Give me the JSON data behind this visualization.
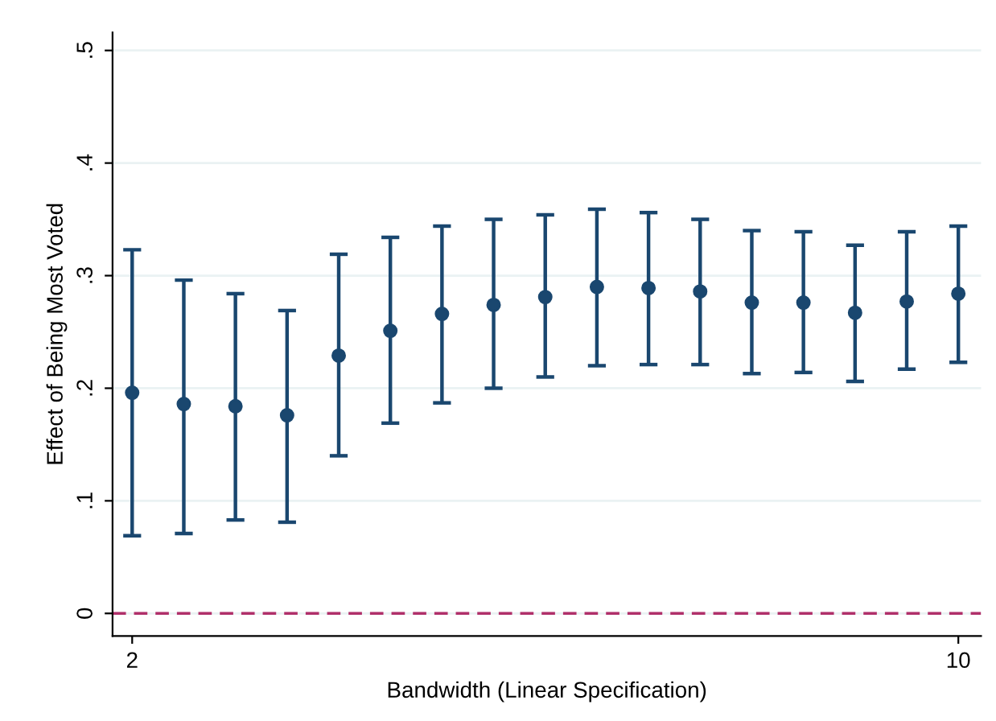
{
  "chart_data": {
    "type": "scatter",
    "xlabel": "Bandwidth (Linear Specification)",
    "ylabel": "Effect of Being Most Voted",
    "x": [
      2,
      2.5,
      3,
      3.5,
      4,
      4.5,
      5,
      5.5,
      6,
      6.5,
      7,
      7.5,
      8,
      8.5,
      9,
      9.5,
      10
    ],
    "series": [
      {
        "color": "#1a476f",
        "values": [
          0.196,
          0.186,
          0.184,
          0.176,
          0.229,
          0.251,
          0.266,
          0.274,
          0.281,
          0.29,
          0.289,
          0.286,
          0.276,
          0.276,
          0.267,
          0.277,
          0.284
        ],
        "errors": [
          [
            0.069,
            0.323
          ],
          [
            0.071,
            0.296
          ],
          [
            0.083,
            0.284
          ],
          [
            0.081,
            0.269
          ],
          [
            0.14,
            0.319
          ],
          [
            0.169,
            0.334
          ],
          [
            0.187,
            0.344
          ],
          [
            0.2,
            0.35
          ],
          [
            0.21,
            0.354
          ],
          [
            0.22,
            0.359
          ],
          [
            0.221,
            0.356
          ],
          [
            0.221,
            0.35
          ],
          [
            0.213,
            0.34
          ],
          [
            0.214,
            0.339
          ],
          [
            0.206,
            0.327
          ],
          [
            0.217,
            0.339
          ],
          [
            0.223,
            0.344
          ]
        ]
      }
    ],
    "marker": "circle",
    "xlim": [
      1.81,
      10.22
    ],
    "xticks": [
      2,
      10
    ],
    "ylim": [
      -0.02,
      0.516
    ],
    "yticks": [
      0,
      {
        "value": 0.1,
        "label": ".1"
      },
      {
        "value": 0.2,
        "label": ".2"
      },
      {
        "value": 0.3,
        "label": ".3"
      },
      {
        "value": 0.4,
        "label": ".4"
      },
      {
        "value": 0.5,
        "label": ".5"
      }
    ],
    "grid": "y",
    "ref_lines": [
      {
        "axis": "y",
        "value": 0,
        "color": "#b0306a",
        "line_style": "dashed"
      }
    ]
  }
}
